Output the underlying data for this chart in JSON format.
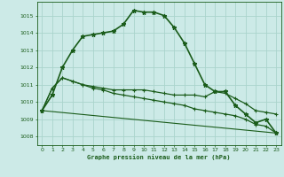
{
  "bg_color": "#cceae7",
  "grid_color": "#aad4cc",
  "line_color": "#1a5c1a",
  "xlabel": "Graphe pression niveau de la mer (hPa)",
  "xlim": [
    -0.5,
    23.5
  ],
  "ylim": [
    1007.5,
    1015.8
  ],
  "yticks": [
    1008,
    1009,
    1010,
    1011,
    1012,
    1013,
    1014,
    1015
  ],
  "xticks": [
    0,
    1,
    2,
    3,
    4,
    5,
    6,
    7,
    8,
    9,
    10,
    11,
    12,
    13,
    14,
    15,
    16,
    17,
    18,
    19,
    20,
    21,
    22,
    23
  ],
  "series": [
    {
      "x": [
        0,
        1,
        2,
        3,
        4,
        5,
        6,
        7,
        8,
        9,
        10,
        11,
        12,
        13,
        14,
        15,
        16,
        17,
        18,
        19,
        20,
        21,
        22,
        23
      ],
      "y": [
        1009.5,
        1010.4,
        1012.0,
        1013.0,
        1013.8,
        1013.9,
        1014.0,
        1014.1,
        1014.5,
        1015.3,
        1015.2,
        1015.2,
        1015.0,
        1014.3,
        1013.4,
        1012.2,
        1011.0,
        1010.6,
        1010.6,
        1009.8,
        1009.3,
        1008.8,
        1009.0,
        1008.2
      ],
      "marker": "*",
      "markersize": 3.5,
      "lw": 1.2
    },
    {
      "x": [
        0,
        1,
        2,
        3,
        4,
        5,
        6,
        7,
        8,
        9,
        10,
        11,
        12,
        13,
        14,
        15,
        16,
        17,
        18,
        19,
        20,
        21,
        22,
        23
      ],
      "y": [
        1009.5,
        1010.8,
        1011.4,
        1011.2,
        1011.0,
        1010.9,
        1010.8,
        1010.7,
        1010.7,
        1010.7,
        1010.7,
        1010.6,
        1010.5,
        1010.4,
        1010.4,
        1010.4,
        1010.3,
        1010.6,
        1010.5,
        1010.2,
        1009.9,
        1009.5,
        1009.4,
        1009.3
      ],
      "marker": "+",
      "markersize": 3.5,
      "lw": 0.9
    },
    {
      "x": [
        0,
        1,
        2,
        3,
        4,
        5,
        6,
        7,
        8,
        9,
        10,
        11,
        12,
        13,
        14,
        15,
        16,
        17,
        18,
        19,
        20,
        21,
        22,
        23
      ],
      "y": [
        1009.5,
        1010.8,
        1011.4,
        1011.2,
        1011.0,
        1010.8,
        1010.7,
        1010.5,
        1010.4,
        1010.3,
        1010.2,
        1010.1,
        1010.0,
        1009.9,
        1009.8,
        1009.6,
        1009.5,
        1009.4,
        1009.3,
        1009.2,
        1009.0,
        1008.7,
        1008.6,
        1008.2
      ],
      "marker": "+",
      "markersize": 3.5,
      "lw": 0.9
    },
    {
      "x": [
        0,
        23
      ],
      "y": [
        1009.5,
        1008.2
      ],
      "marker": null,
      "markersize": 0,
      "lw": 0.8
    }
  ]
}
